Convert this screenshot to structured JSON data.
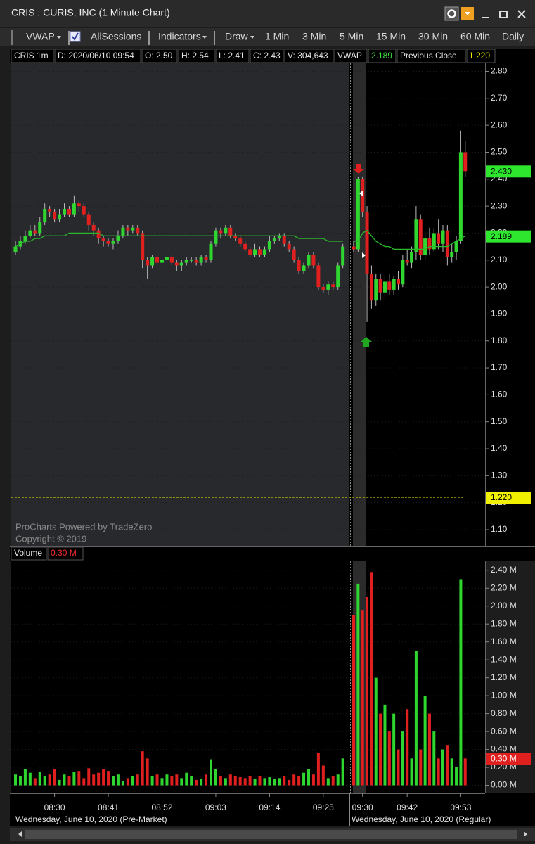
{
  "window": {
    "title": "CRIS : CURIS, INC (1 Minute Chart)"
  },
  "toolbar": {
    "study": "VWAP",
    "sessions": "AllSessions",
    "indicators": "Indicators",
    "draw": "Draw",
    "intervals": [
      "1 Min",
      "3 Min",
      "5 Min",
      "15 Min",
      "30 Min",
      "60 Min",
      "Daily"
    ]
  },
  "info_bar": {
    "symbol": "CRIS 1m",
    "date": "D: 2020/06/10 09:54",
    "open": "O: 2.50",
    "high": "H: 2.54",
    "low": "L: 2.41",
    "close": "C: 2.43",
    "volume": "V: 304,643",
    "vwap_name": "VWAP",
    "vwap": "2.189",
    "prev_close_name": "Previous Close",
    "prev_close": "1.220"
  },
  "watermark": [
    "ProCharts Powered by TradeZero",
    "Copyright © 2019"
  ],
  "chart_data": [
    {
      "type": "candlestick",
      "up_color": "#2fd62f",
      "down_color": "#e01f1f",
      "vwap_color": "#2bb82b",
      "ylim": [
        1.04,
        2.83
      ],
      "yticks": [
        {
          "value": 2.8,
          "label": "2.80"
        },
        {
          "value": 2.7,
          "label": "2.70"
        },
        {
          "value": 2.6,
          "label": "2.60"
        },
        {
          "value": 2.5,
          "label": "2.50"
        },
        {
          "value": 2.4,
          "label": "2.40"
        },
        {
          "value": 2.3,
          "label": "2.30"
        },
        {
          "value": 2.2,
          "label": "2.20"
        },
        {
          "value": 2.1,
          "label": "2.10"
        },
        {
          "value": 2.0,
          "label": "2.00"
        },
        {
          "value": 1.9,
          "label": "1.90"
        },
        {
          "value": 1.8,
          "label": "1.80"
        },
        {
          "value": 1.7,
          "label": "1.70"
        },
        {
          "value": 1.6,
          "label": "1.60"
        },
        {
          "value": 1.5,
          "label": "1.50"
        },
        {
          "value": 1.4,
          "label": "1.40"
        },
        {
          "value": 1.3,
          "label": "1.30"
        },
        {
          "value": 1.2,
          "label": "1.20"
        },
        {
          "value": 1.1,
          "label": "1.10"
        }
      ],
      "last_price": {
        "value": 2.43,
        "label": "2.430",
        "color": "#2fe62f"
      },
      "vwap_last": {
        "value": 2.189,
        "label": "2.189",
        "color": "#2fe62f"
      },
      "previous_close": {
        "value": 1.22,
        "label": "1.220",
        "color": "#f0f000"
      },
      "sessions": [
        {
          "label": "Wednesday, June 10, 2020 (Pre-Market)",
          "categories": [
            null,
            null,
            null,
            null,
            null,
            null,
            null,
            null,
            "08:30",
            null,
            null,
            null,
            null,
            null,
            null,
            null,
            null,
            null,
            null,
            "08:41",
            null,
            null,
            null,
            null,
            null,
            null,
            null,
            null,
            null,
            null,
            "08:52",
            null,
            null,
            null,
            null,
            null,
            null,
            null,
            null,
            null,
            null,
            "09:03",
            null,
            null,
            null,
            null,
            null,
            null,
            null,
            null,
            null,
            null,
            "09:14",
            null,
            null,
            null,
            null,
            null,
            null,
            null,
            null,
            null,
            null,
            "09:25",
            null,
            null,
            null,
            null
          ],
          "open": [
            2.13,
            2.15,
            2.17,
            2.19,
            2.21,
            2.2,
            2.24,
            2.29,
            2.28,
            2.25,
            2.27,
            2.29,
            2.27,
            2.31,
            2.3,
            2.27,
            2.23,
            2.21,
            2.18,
            2.17,
            2.16,
            2.17,
            2.19,
            2.22,
            2.21,
            2.22,
            2.2,
            2.1,
            2.08,
            2.11,
            2.09,
            2.1,
            2.11,
            2.09,
            2.08,
            2.09,
            2.1,
            2.1,
            2.09,
            2.11,
            2.1,
            2.16,
            2.21,
            2.2,
            2.22,
            2.19,
            2.18,
            2.16,
            2.14,
            2.12,
            2.14,
            2.12,
            2.14,
            2.17,
            2.18,
            2.19,
            2.16,
            2.14,
            2.1,
            2.06,
            2.08,
            2.12,
            2.08,
            2.0,
            1.99,
            2.01,
            2.0,
            2.08
          ],
          "high": [
            2.17,
            2.19,
            2.21,
            2.23,
            2.23,
            2.26,
            2.31,
            2.3,
            2.29,
            2.29,
            2.31,
            2.3,
            2.34,
            2.32,
            2.31,
            2.28,
            2.24,
            2.22,
            2.19,
            2.18,
            2.18,
            2.21,
            2.23,
            2.23,
            2.23,
            2.23,
            2.21,
            2.11,
            2.12,
            2.12,
            2.12,
            2.12,
            2.12,
            2.1,
            2.1,
            2.11,
            2.11,
            2.11,
            2.12,
            2.12,
            2.17,
            2.22,
            2.22,
            2.23,
            2.23,
            2.2,
            2.19,
            2.17,
            2.15,
            2.16,
            2.15,
            2.15,
            2.19,
            2.19,
            2.2,
            2.2,
            2.17,
            2.15,
            2.11,
            2.09,
            2.13,
            2.13,
            2.09,
            2.01,
            2.02,
            2.02,
            2.09,
            2.16
          ],
          "low": [
            2.12,
            2.14,
            2.16,
            2.18,
            2.19,
            2.19,
            2.23,
            2.26,
            2.24,
            2.24,
            2.26,
            2.26,
            2.26,
            2.28,
            2.26,
            2.21,
            2.19,
            2.16,
            2.15,
            2.15,
            2.14,
            2.16,
            2.18,
            2.19,
            2.2,
            2.19,
            2.07,
            2.03,
            2.07,
            2.08,
            2.08,
            2.09,
            2.08,
            2.06,
            2.06,
            2.08,
            2.09,
            2.08,
            2.08,
            2.09,
            2.09,
            2.15,
            2.18,
            2.19,
            2.18,
            2.17,
            2.15,
            2.13,
            2.11,
            2.11,
            2.11,
            2.11,
            2.13,
            2.16,
            2.17,
            2.15,
            2.13,
            2.09,
            2.05,
            2.05,
            2.07,
            2.07,
            1.99,
            1.98,
            1.97,
            1.99,
            1.99,
            2.07
          ],
          "close": [
            2.15,
            2.17,
            2.19,
            2.21,
            2.2,
            2.24,
            2.29,
            2.28,
            2.25,
            2.27,
            2.29,
            2.27,
            2.31,
            2.3,
            2.27,
            2.23,
            2.21,
            2.18,
            2.17,
            2.16,
            2.17,
            2.19,
            2.22,
            2.21,
            2.22,
            2.2,
            2.1,
            2.08,
            2.11,
            2.09,
            2.1,
            2.11,
            2.09,
            2.08,
            2.09,
            2.1,
            2.1,
            2.09,
            2.11,
            2.1,
            2.16,
            2.21,
            2.2,
            2.22,
            2.19,
            2.18,
            2.16,
            2.14,
            2.12,
            2.14,
            2.12,
            2.14,
            2.17,
            2.18,
            2.19,
            2.16,
            2.14,
            2.1,
            2.06,
            2.08,
            2.12,
            2.08,
            2.0,
            1.99,
            2.01,
            2.0,
            2.08,
            2.15
          ],
          "vwap": [
            2.15,
            2.16,
            2.17,
            2.17,
            2.18,
            2.18,
            2.19,
            2.19,
            2.19,
            2.19,
            2.19,
            2.2,
            2.2,
            2.2,
            2.2,
            2.2,
            2.2,
            2.2,
            2.19,
            2.19,
            2.19,
            2.19,
            2.19,
            2.19,
            2.19,
            2.19,
            2.19,
            2.19,
            2.19,
            2.19,
            2.19,
            2.19,
            2.19,
            2.19,
            2.19,
            2.19,
            2.19,
            2.19,
            2.19,
            2.19,
            2.19,
            2.19,
            2.19,
            2.19,
            2.19,
            2.19,
            2.19,
            2.19,
            2.19,
            2.19,
            2.19,
            2.19,
            2.19,
            2.19,
            2.19,
            2.19,
            2.19,
            2.19,
            2.18,
            2.18,
            2.18,
            2.18,
            2.18,
            2.18,
            2.17,
            2.17,
            2.17,
            2.17
          ]
        },
        {
          "label": "Wednesday, June 10, 2020 (Regular)",
          "categories": [
            null,
            null,
            "09:30",
            null,
            null,
            null,
            null,
            null,
            null,
            null,
            null,
            null,
            "09:42",
            null,
            null,
            null,
            null,
            null,
            null,
            null,
            null,
            null,
            null,
            null,
            "09:53",
            null
          ],
          "open": [
            2.15,
            2.14,
            2.4,
            2.28,
            2.05,
            1.95,
            2.03,
            1.98,
            2.02,
            1.99,
            2.03,
            2.01,
            2.1,
            2.09,
            2.13,
            2.25,
            2.12,
            2.18,
            2.14,
            2.2,
            2.16,
            2.21,
            2.11,
            2.13,
            2.17,
            2.5
          ],
          "high": [
            2.17,
            2.41,
            2.41,
            2.3,
            2.08,
            2.05,
            2.05,
            2.04,
            2.05,
            2.04,
            2.06,
            2.12,
            2.14,
            2.15,
            2.3,
            2.27,
            2.2,
            2.22,
            2.22,
            2.25,
            2.23,
            2.23,
            2.16,
            2.19,
            2.58,
            2.54
          ],
          "low": [
            2.13,
            2.13,
            2.26,
            1.87,
            1.92,
            1.93,
            1.95,
            1.96,
            1.97,
            1.97,
            1.99,
            2.0,
            2.08,
            2.07,
            2.1,
            2.1,
            2.1,
            2.12,
            2.13,
            2.14,
            2.13,
            2.08,
            2.09,
            2.1,
            2.16,
            2.41
          ],
          "close": [
            2.14,
            2.4,
            2.28,
            2.05,
            1.95,
            2.03,
            1.98,
            2.02,
            1.99,
            2.03,
            2.01,
            2.1,
            2.09,
            2.13,
            2.25,
            2.12,
            2.18,
            2.14,
            2.2,
            2.16,
            2.21,
            2.11,
            2.13,
            2.17,
            2.5,
            2.43
          ],
          "vwap": [
            2.17,
            2.17,
            2.2,
            2.21,
            2.19,
            2.17,
            2.16,
            2.15,
            2.15,
            2.14,
            2.14,
            2.14,
            2.14,
            2.14,
            2.14,
            2.14,
            2.14,
            2.15,
            2.15,
            2.15,
            2.15,
            2.15,
            2.16,
            2.17,
            2.18,
            2.189
          ]
        }
      ]
    },
    {
      "type": "bar",
      "title": "Volume",
      "ylim": [
        -0.09,
        2.5
      ],
      "yticks": [
        {
          "value": 0,
          "label": "0.00 M"
        },
        {
          "value": 0.2,
          "label": "0.20 M"
        },
        {
          "value": 0.4,
          "label": "0.40 M"
        },
        {
          "value": 0.6,
          "label": "0.60 M"
        },
        {
          "value": 0.8,
          "label": "0.80 M"
        },
        {
          "value": 1.0,
          "label": "1.00 M"
        },
        {
          "value": 1.2,
          "label": "1.20 M"
        },
        {
          "value": 1.4,
          "label": "1.40 M"
        },
        {
          "value": 1.6,
          "label": "1.60 M"
        },
        {
          "value": 1.8,
          "label": "1.80 M"
        },
        {
          "value": 2.0,
          "label": "2.00 M"
        },
        {
          "value": 2.2,
          "label": "2.20 M"
        },
        {
          "value": 2.4,
          "label": "2.40 M"
        }
      ],
      "current": {
        "value": 0.3,
        "label": "0.30 M",
        "color": "#e01f1f"
      },
      "sessions": [
        {
          "values": [
            0.12,
            0.1,
            0.18,
            0.14,
            0.08,
            0.15,
            0.1,
            0.12,
            0.18,
            0.06,
            0.12,
            0.1,
            0.15,
            0.16,
            0.08,
            0.19,
            0.12,
            0.14,
            0.18,
            0.16,
            0.1,
            0.12,
            0.05,
            0.08,
            0.1,
            0.12,
            0.38,
            0.3,
            0.1,
            0.12,
            0.08,
            0.12,
            0.1,
            0.12,
            0.08,
            0.14,
            0.1,
            0.06,
            0.07,
            0.12,
            0.29,
            0.18,
            0.1,
            0.08,
            0.12,
            0.1,
            0.09,
            0.08,
            0.1,
            0.07,
            0.1,
            0.08,
            0.09,
            0.07,
            0.08,
            0.1,
            0.06,
            0.12,
            0.1,
            0.14,
            0.18,
            0.12,
            0.36,
            0.22,
            0.08,
            0.1,
            0.12,
            0.3
          ]
        },
        {
          "values": [
            1.9,
            2.25,
            1.95,
            2.1,
            2.38,
            1.2,
            0.8,
            0.9,
            0.6,
            0.8,
            0.4,
            0.6,
            0.85,
            0.3,
            1.5,
            0.4,
            1.0,
            0.8,
            0.6,
            0.3,
            0.4,
            0.45,
            0.3,
            0.2,
            2.3,
            0.3
          ]
        }
      ]
    }
  ]
}
